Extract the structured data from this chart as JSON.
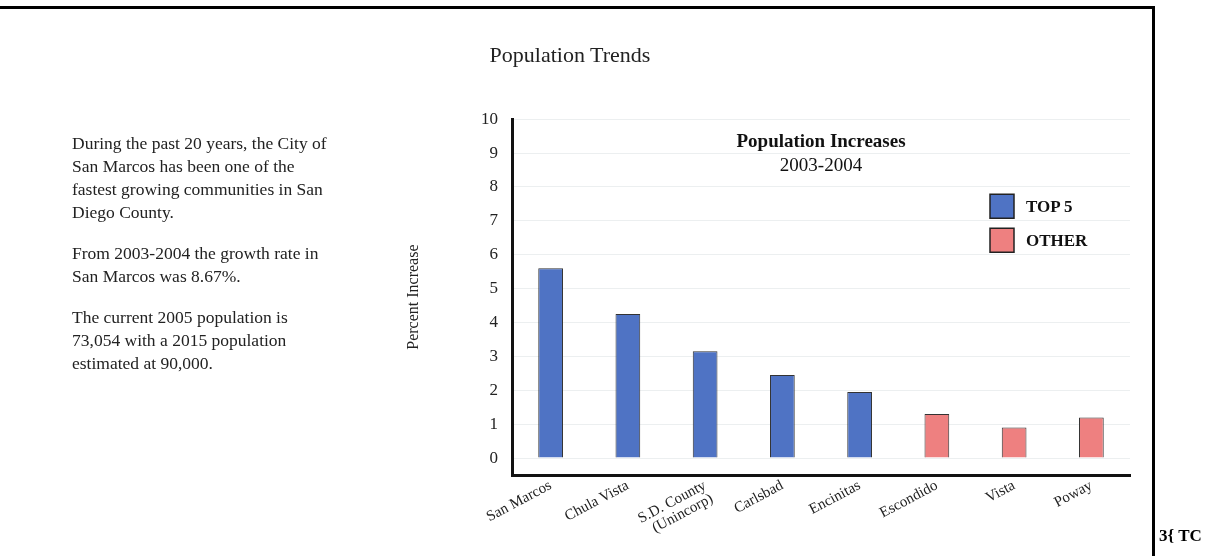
{
  "chart_data": {
    "type": "bar",
    "title": "Population Increases",
    "subtitle": "2003-2004",
    "ylabel": "Percent Increase",
    "categories": [
      "San Marcos",
      "Chula Vista",
      "S.D. County (Unincorp)",
      "Carlsbad",
      "Encinitas",
      "Escondido",
      "Vista",
      "Poway"
    ],
    "series": [
      {
        "name": "TOP 5",
        "color": "#4f73c4",
        "values": [
          5.6,
          4.25,
          3.15,
          2.45,
          1.95,
          null,
          null,
          null
        ]
      },
      {
        "name": "OTHER",
        "color": "#ee8080",
        "values": [
          null,
          null,
          null,
          null,
          null,
          1.3,
          0.9,
          1.2
        ]
      }
    ],
    "ylim": [
      -0.5,
      10
    ],
    "yticks": [
      0,
      1,
      2,
      3,
      4,
      5,
      6,
      7,
      8,
      9,
      10
    ],
    "grid": "y",
    "legend": "top right",
    "annotations": [
      "Population Trends",
      "During the past 20 years, the City of San Marcos has been one of the fastest growing communities in San Diego County.",
      "From 2003-2004 the growth rate in San Marcos was 8.67%.",
      "The current 2005 population is 73,054 with a 2015 population estimated at 90,000.",
      "3{ TC"
    ]
  }
}
